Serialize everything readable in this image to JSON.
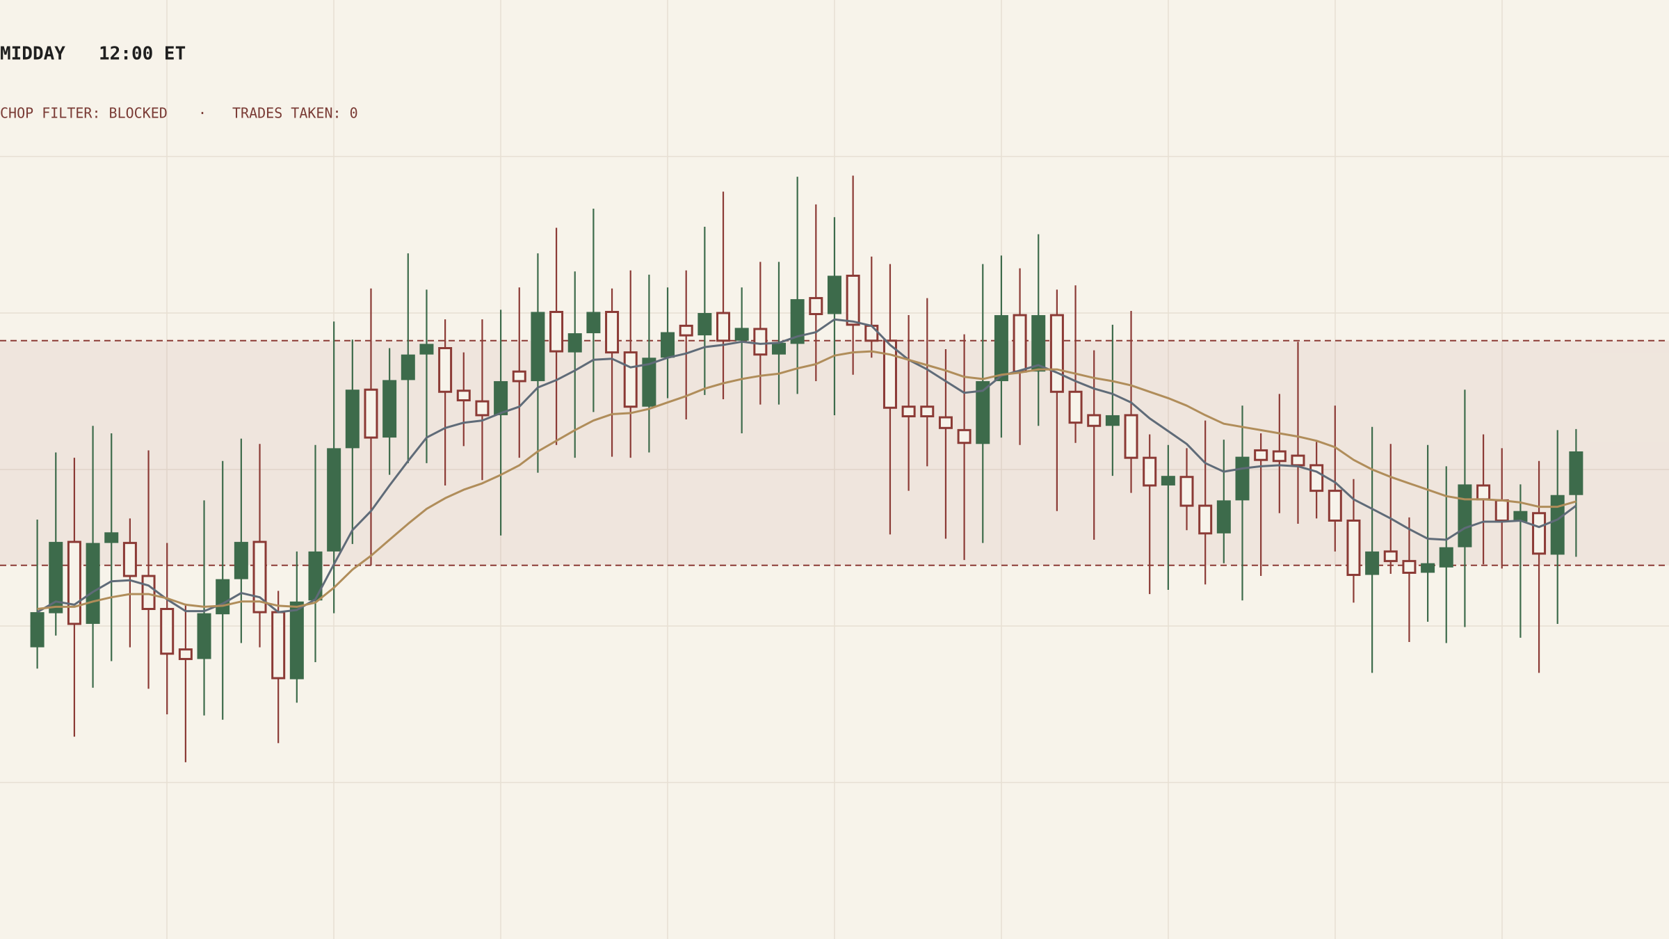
{
  "chart_data": {
    "type": "candlestick",
    "title": "MIDDAY",
    "time": "12:00 ET",
    "status": [
      "CHOP FILTER: BLOCKED",
      "TRADES TAKEN: 0"
    ],
    "status_separator": "·",
    "ylim": [
      0,
      88.2
    ],
    "grid": true,
    "up_color": "#3d6b4b",
    "down_color": "#8b3a35",
    "band": {
      "values": [
        56.2,
        35.1
      ],
      "color": "#8b3a35"
    },
    "open": [
      27.4,
      30.6,
      37.3,
      29.6,
      37.2,
      37.2,
      34.1,
      31.0,
      27.2,
      26.3,
      30.5,
      33.8,
      37.3,
      30.7,
      24.4,
      31.8,
      36.4,
      46.1,
      51.6,
      47.1,
      52.5,
      54.9,
      55.5,
      51.5,
      50.5,
      49.2,
      53.3,
      52.4,
      58.9,
      55.1,
      56.9,
      58.9,
      55.1,
      50.0,
      54.6,
      57.6,
      56.7,
      58.8,
      56.2,
      57.3,
      54.9,
      55.9,
      60.2,
      58.7,
      62.3,
      57.6,
      56.2,
      50.0,
      50.0,
      49.0,
      47.8,
      46.5,
      52.4,
      58.6,
      53.3,
      58.6,
      51.4,
      49.2,
      48.2,
      49.2,
      45.2,
      42.6,
      43.4,
      40.7,
      38.1,
      41.2,
      45.9,
      45.8,
      45.4,
      44.5,
      42.1,
      39.3,
      34.2,
      36.4,
      35.5,
      34.4,
      34.9,
      36.8,
      42.6,
      41.2,
      39.2,
      40.0,
      36.1,
      41.7
    ],
    "high": [
      39.4,
      45.7,
      45.2,
      48.2,
      47.5,
      39.5,
      45.9,
      37.2,
      31.5,
      41.2,
      44.9,
      47.0,
      46.5,
      32.7,
      36.4,
      46.4,
      58.0,
      56.3,
      61.1,
      55.5,
      64.4,
      61.0,
      58.2,
      55.1,
      58.2,
      59.1,
      61.2,
      64.4,
      66.8,
      62.7,
      68.6,
      61.1,
      62.8,
      62.4,
      61.2,
      62.8,
      66.9,
      70.2,
      61.2,
      63.6,
      63.6,
      71.6,
      69.0,
      67.8,
      71.7,
      64.1,
      63.4,
      58.6,
      60.2,
      55.4,
      56.8,
      63.4,
      64.2,
      63.0,
      66.2,
      61.0,
      61.4,
      55.3,
      57.7,
      59.0,
      47.4,
      46.4,
      46.1,
      48.7,
      46.9,
      50.1,
      47.5,
      51.2,
      56.1,
      46.7,
      50.1,
      43.2,
      48.1,
      46.5,
      39.6,
      46.4,
      44.4,
      51.6,
      47.4,
      46.1,
      42.7,
      44.9,
      47.8,
      47.9
    ],
    "low": [
      25.4,
      28.5,
      19.0,
      23.6,
      26.1,
      27.4,
      23.5,
      21.1,
      16.6,
      21.0,
      20.6,
      27.8,
      27.4,
      18.4,
      22.2,
      26.0,
      30.6,
      37.1,
      35.1,
      43.6,
      44.7,
      44.7,
      42.6,
      46.3,
      43.1,
      37.9,
      45.2,
      43.8,
      46.4,
      45.2,
      49.5,
      45.3,
      45.2,
      45.7,
      50.8,
      48.8,
      51.1,
      50.7,
      47.5,
      50.2,
      50.2,
      51.2,
      52.4,
      49.2,
      53.0,
      54.6,
      38.0,
      42.1,
      44.4,
      37.6,
      35.6,
      37.2,
      47.1,
      46.4,
      48.2,
      40.2,
      46.6,
      37.5,
      43.5,
      41.9,
      32.4,
      32.8,
      38.4,
      33.3,
      35.3,
      31.8,
      34.1,
      40.0,
      39.0,
      39.5,
      36.4,
      31.6,
      25.0,
      34.3,
      27.9,
      29.8,
      27.8,
      29.3,
      35.2,
      34.8,
      28.3,
      25.0,
      29.6,
      35.9
    ],
    "close": [
      30.7,
      37.3,
      29.6,
      37.2,
      38.2,
      34.1,
      31.0,
      26.8,
      26.3,
      30.6,
      33.8,
      37.3,
      30.7,
      24.5,
      31.7,
      36.4,
      46.1,
      51.6,
      47.1,
      52.5,
      54.9,
      55.9,
      51.4,
      50.6,
      49.2,
      52.4,
      52.4,
      58.9,
      55.2,
      56.9,
      58.9,
      55.1,
      50.0,
      54.6,
      57.0,
      56.7,
      58.8,
      56.2,
      57.4,
      54.9,
      56.0,
      60.1,
      58.7,
      62.3,
      57.7,
      56.2,
      49.9,
      49.1,
      49.1,
      48.0,
      46.6,
      52.4,
      58.6,
      53.3,
      58.6,
      51.4,
      48.5,
      48.2,
      49.2,
      45.2,
      42.6,
      43.5,
      40.7,
      38.1,
      41.2,
      45.3,
      45.0,
      44.9,
      44.5,
      42.1,
      39.3,
      34.2,
      36.4,
      35.5,
      34.4,
      35.3,
      36.8,
      42.7,
      41.3,
      39.3,
      40.2,
      36.2,
      41.7,
      45.8
    ],
    "lines": [
      {
        "color": "#5f6b78",
        "values": [
          30.7,
          31.7,
          31.4,
          32.6,
          33.6,
          33.7,
          33.2,
          31.9,
          30.8,
          30.8,
          31.5,
          32.5,
          32.1,
          30.7,
          30.9,
          31.9,
          35.2,
          38.4,
          40.2,
          42.6,
          44.9,
          47.1,
          48.0,
          48.5,
          48.7,
          49.4,
          50.0,
          51.8,
          52.5,
          53.4,
          54.4,
          54.5,
          53.7,
          54.0,
          54.6,
          55.0,
          55.6,
          55.8,
          56.1,
          55.9,
          56.0,
          56.6,
          57.0,
          58.2,
          58.0,
          57.6,
          55.8,
          54.4,
          53.5,
          52.4,
          51.3,
          51.5,
          52.9,
          53.4,
          53.9,
          53.2,
          52.4,
          51.7,
          51.2,
          50.4,
          48.9,
          47.7,
          46.5,
          44.7,
          43.9,
          44.2,
          44.4,
          44.5,
          44.4,
          43.9,
          42.9,
          41.3,
          40.4,
          39.5,
          38.5,
          37.6,
          37.5,
          38.6,
          39.2,
          39.2,
          39.3,
          38.7,
          39.4,
          40.7
        ]
      },
      {
        "color": "#b08d5a",
        "values": [
          31.0,
          31.2,
          31.2,
          31.7,
          32.1,
          32.4,
          32.4,
          32.0,
          31.4,
          31.2,
          31.3,
          31.7,
          31.7,
          31.3,
          31.2,
          31.6,
          33.0,
          34.7,
          36.0,
          37.5,
          39.0,
          40.4,
          41.4,
          42.2,
          42.8,
          43.6,
          44.5,
          45.8,
          46.8,
          47.8,
          48.7,
          49.3,
          49.4,
          49.8,
          50.4,
          51.0,
          51.7,
          52.2,
          52.6,
          52.9,
          53.1,
          53.6,
          54.0,
          54.8,
          55.1,
          55.2,
          54.9,
          54.4,
          53.9,
          53.4,
          52.8,
          52.6,
          53.0,
          53.2,
          53.5,
          53.5,
          53.1,
          52.7,
          52.4,
          52.0,
          51.4,
          50.8,
          50.1,
          49.2,
          48.4,
          48.1,
          47.8,
          47.5,
          47.2,
          46.8,
          46.2,
          45.0,
          44.1,
          43.4,
          42.8,
          42.2,
          41.6,
          41.3,
          41.3,
          41.2,
          41.0,
          40.6,
          40.6,
          41.1
        ]
      }
    ]
  }
}
